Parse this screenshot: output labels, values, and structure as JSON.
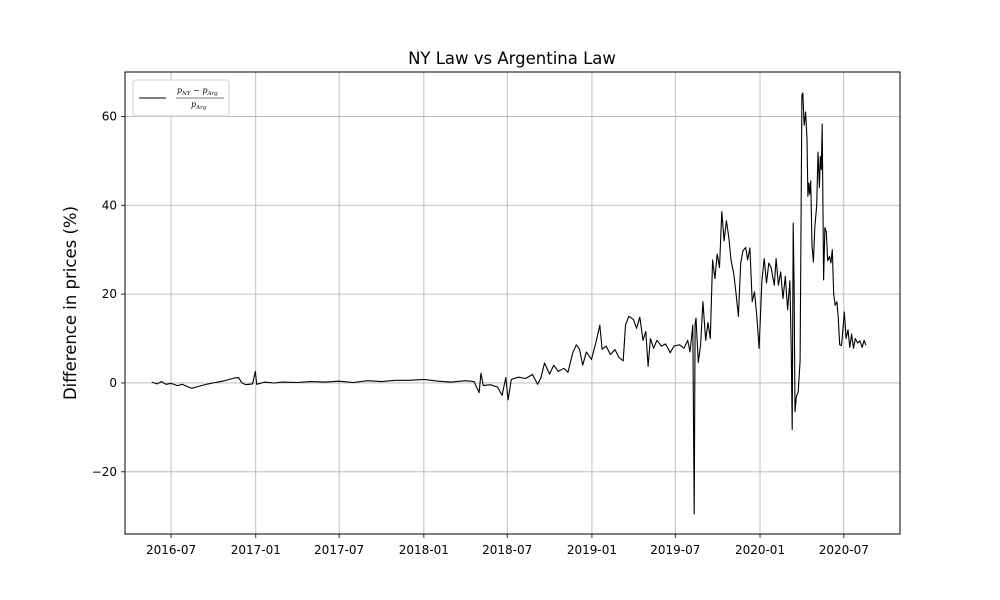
{
  "chart_data": {
    "type": "line",
    "title": "NY Law vs Argentina Law",
    "xlabel": "",
    "ylabel": "Difference in prices (%)",
    "x_ticks": [
      "2016-07",
      "2017-01",
      "2017-07",
      "2018-01",
      "2018-07",
      "2019-01",
      "2019-07",
      "2020-01",
      "2020-07"
    ],
    "y_ticks": [
      -20,
      0,
      20,
      40,
      60
    ],
    "y_tick_labels": [
      "−20",
      "0",
      "20",
      "40",
      "60"
    ],
    "xlim": [
      "2016-03-23",
      "2020-10-31"
    ],
    "ylim": [
      -34,
      70
    ],
    "grid": true,
    "legend_position": "upper-left",
    "legend": {
      "numerator_a": "p",
      "numerator_a_sub": "NY",
      "numerator_op": " − ",
      "numerator_b": "p",
      "numerator_b_sub": "Arg",
      "denominator": "p",
      "denominator_sub": "Arg"
    },
    "series": [
      {
        "color": "#000000",
        "points": [
          [
            "2016-05-20",
            0.2
          ],
          [
            "2016-06-01",
            -0.2
          ],
          [
            "2016-06-10",
            0.3
          ],
          [
            "2016-06-20",
            -0.3
          ],
          [
            "2016-07-01",
            -0.1
          ],
          [
            "2016-07-15",
            -0.6
          ],
          [
            "2016-07-25",
            -0.3
          ],
          [
            "2016-08-05",
            -0.8
          ],
          [
            "2016-08-15",
            -1.2
          ],
          [
            "2016-08-25",
            -0.9
          ],
          [
            "2016-09-05",
            -0.6
          ],
          [
            "2016-09-20",
            -0.2
          ],
          [
            "2016-10-05",
            0.1
          ],
          [
            "2016-10-20",
            0.4
          ],
          [
            "2016-11-01",
            0.7
          ],
          [
            "2016-11-15",
            1.1
          ],
          [
            "2016-11-25",
            1.2
          ],
          [
            "2016-12-01",
            0.1
          ],
          [
            "2016-12-10",
            -0.4
          ],
          [
            "2016-12-25",
            -0.2
          ],
          [
            "2016-12-31",
            2.6
          ],
          [
            "2017-01-03",
            -0.3
          ],
          [
            "2017-01-20",
            0.2
          ],
          [
            "2017-02-10",
            0.0
          ],
          [
            "2017-03-01",
            0.2
          ],
          [
            "2017-04-01",
            0.1
          ],
          [
            "2017-05-01",
            0.3
          ],
          [
            "2017-06-01",
            0.2
          ],
          [
            "2017-07-01",
            0.4
          ],
          [
            "2017-08-01",
            0.1
          ],
          [
            "2017-09-01",
            0.5
          ],
          [
            "2017-10-01",
            0.3
          ],
          [
            "2017-11-01",
            0.6
          ],
          [
            "2017-12-01",
            0.6
          ],
          [
            "2018-01-01",
            0.8
          ],
          [
            "2018-02-01",
            0.4
          ],
          [
            "2018-03-01",
            0.2
          ],
          [
            "2018-04-01",
            0.5
          ],
          [
            "2018-04-20",
            0.3
          ],
          [
            "2018-05-01",
            -2.2
          ],
          [
            "2018-05-05",
            2.2
          ],
          [
            "2018-05-10",
            -0.6
          ],
          [
            "2018-05-25",
            -0.4
          ],
          [
            "2018-06-10",
            -0.9
          ],
          [
            "2018-06-20",
            -2.8
          ],
          [
            "2018-06-28",
            1.2
          ],
          [
            "2018-07-03",
            -3.8
          ],
          [
            "2018-07-10",
            0.8
          ],
          [
            "2018-07-25",
            1.3
          ],
          [
            "2018-08-10",
            1.0
          ],
          [
            "2018-08-25",
            1.9
          ],
          [
            "2018-09-05",
            -0.3
          ],
          [
            "2018-09-12",
            1.1
          ],
          [
            "2018-09-20",
            4.5
          ],
          [
            "2018-10-01",
            2.0
          ],
          [
            "2018-10-10",
            4.0
          ],
          [
            "2018-10-20",
            2.6
          ],
          [
            "2018-11-01",
            3.3
          ],
          [
            "2018-11-10",
            2.4
          ],
          [
            "2018-11-20",
            6.7
          ],
          [
            "2018-11-28",
            8.6
          ],
          [
            "2018-12-05",
            7.6
          ],
          [
            "2018-12-12",
            4.0
          ],
          [
            "2018-12-20",
            7.0
          ],
          [
            "2018-12-31",
            5.3
          ],
          [
            "2019-01-10",
            9.3
          ],
          [
            "2019-01-18",
            13.0
          ],
          [
            "2019-01-23",
            7.6
          ],
          [
            "2019-02-01",
            8.3
          ],
          [
            "2019-02-10",
            6.4
          ],
          [
            "2019-02-20",
            7.5
          ],
          [
            "2019-03-01",
            5.7
          ],
          [
            "2019-03-10",
            5.0
          ],
          [
            "2019-03-15",
            13.0
          ],
          [
            "2019-03-22",
            15.0
          ],
          [
            "2019-04-01",
            14.3
          ],
          [
            "2019-04-08",
            12.3
          ],
          [
            "2019-04-15",
            14.8
          ],
          [
            "2019-04-22",
            9.6
          ],
          [
            "2019-04-28",
            11.6
          ],
          [
            "2019-05-03",
            3.7
          ],
          [
            "2019-05-08",
            10.0
          ],
          [
            "2019-05-15",
            7.8
          ],
          [
            "2019-05-22",
            9.6
          ],
          [
            "2019-06-01",
            8.3
          ],
          [
            "2019-06-10",
            8.8
          ],
          [
            "2019-06-20",
            6.8
          ],
          [
            "2019-06-28",
            8.3
          ],
          [
            "2019-07-10",
            8.6
          ],
          [
            "2019-07-20",
            7.8
          ],
          [
            "2019-07-28",
            9.6
          ],
          [
            "2019-08-02",
            7.0
          ],
          [
            "2019-08-08",
            13.0
          ],
          [
            "2019-08-11",
            -29.5
          ],
          [
            "2019-08-13",
            13.2
          ],
          [
            "2019-08-15",
            14.6
          ],
          [
            "2019-08-20",
            4.6
          ],
          [
            "2019-08-25",
            8.6
          ],
          [
            "2019-08-30",
            18.3
          ],
          [
            "2019-09-05",
            9.6
          ],
          [
            "2019-09-10",
            13.6
          ],
          [
            "2019-09-15",
            10.0
          ],
          [
            "2019-09-20",
            27.7
          ],
          [
            "2019-09-25",
            23.5
          ],
          [
            "2019-09-30",
            29.0
          ],
          [
            "2019-10-05",
            26.0
          ],
          [
            "2019-10-10",
            38.6
          ],
          [
            "2019-10-15",
            32.0
          ],
          [
            "2019-10-20",
            36.5
          ],
          [
            "2019-10-25",
            33.0
          ],
          [
            "2019-10-30",
            27.7
          ],
          [
            "2019-11-05",
            24.5
          ],
          [
            "2019-11-10",
            20.0
          ],
          [
            "2019-11-15",
            15.0
          ],
          [
            "2019-11-20",
            27.0
          ],
          [
            "2019-11-25",
            29.8
          ],
          [
            "2019-12-01",
            30.5
          ],
          [
            "2019-12-05",
            27.7
          ],
          [
            "2019-12-10",
            30.4
          ],
          [
            "2019-12-15",
            18.3
          ],
          [
            "2019-12-20",
            20.5
          ],
          [
            "2019-12-25",
            15.0
          ],
          [
            "2019-12-30",
            7.8
          ],
          [
            "2020-01-05",
            23.0
          ],
          [
            "2020-01-10",
            28.0
          ],
          [
            "2020-01-15",
            22.5
          ],
          [
            "2020-01-20",
            27.0
          ],
          [
            "2020-01-25",
            26.0
          ],
          [
            "2020-02-01",
            22.0
          ],
          [
            "2020-02-05",
            28.0
          ],
          [
            "2020-02-10",
            22.0
          ],
          [
            "2020-02-15",
            25.0
          ],
          [
            "2020-02-20",
            19.0
          ],
          [
            "2020-02-25",
            24.0
          ],
          [
            "2020-03-01",
            16.5
          ],
          [
            "2020-03-06",
            23.0
          ],
          [
            "2020-03-09",
            6.6
          ],
          [
            "2020-03-11",
            -10.5
          ],
          [
            "2020-03-13",
            36.0
          ],
          [
            "2020-03-15",
            22.0
          ],
          [
            "2020-03-17",
            -6.5
          ],
          [
            "2020-03-20",
            -3.0
          ],
          [
            "2020-03-24",
            -2.0
          ],
          [
            "2020-03-28",
            5.0
          ],
          [
            "2020-04-01",
            64.8
          ],
          [
            "2020-04-03",
            65.3
          ],
          [
            "2020-04-06",
            58.0
          ],
          [
            "2020-04-09",
            61.0
          ],
          [
            "2020-04-12",
            55.0
          ],
          [
            "2020-04-14",
            42.0
          ],
          [
            "2020-04-16",
            45.0
          ],
          [
            "2020-04-18",
            42.5
          ],
          [
            "2020-04-20",
            45.5
          ],
          [
            "2020-04-23",
            31.0
          ],
          [
            "2020-04-26",
            27.2
          ],
          [
            "2020-04-29",
            35.0
          ],
          [
            "2020-05-03",
            40.0
          ],
          [
            "2020-05-06",
            52.0
          ],
          [
            "2020-05-09",
            44.0
          ],
          [
            "2020-05-11",
            51.0
          ],
          [
            "2020-05-13",
            48.0
          ],
          [
            "2020-05-15",
            58.3
          ],
          [
            "2020-05-18",
            23.2
          ],
          [
            "2020-05-21",
            35.0
          ],
          [
            "2020-05-24",
            34.0
          ],
          [
            "2020-05-27",
            27.5
          ],
          [
            "2020-05-31",
            28.5
          ],
          [
            "2020-06-03",
            27.0
          ],
          [
            "2020-06-06",
            30.0
          ],
          [
            "2020-06-09",
            20.0
          ],
          [
            "2020-06-12",
            17.5
          ],
          [
            "2020-06-16",
            18.3
          ],
          [
            "2020-06-19",
            14.5
          ],
          [
            "2020-06-22",
            8.6
          ],
          [
            "2020-06-26",
            8.4
          ],
          [
            "2020-06-29",
            12.0
          ],
          [
            "2020-07-02",
            16.0
          ],
          [
            "2020-07-06",
            10.0
          ],
          [
            "2020-07-10",
            12.0
          ],
          [
            "2020-07-14",
            8.0
          ],
          [
            "2020-07-18",
            11.0
          ],
          [
            "2020-07-22",
            7.8
          ],
          [
            "2020-07-26",
            10.0
          ],
          [
            "2020-07-31",
            9.0
          ],
          [
            "2020-08-05",
            9.5
          ],
          [
            "2020-08-10",
            8.0
          ],
          [
            "2020-08-14",
            9.6
          ],
          [
            "2020-08-18",
            8.5
          ]
        ]
      }
    ]
  }
}
